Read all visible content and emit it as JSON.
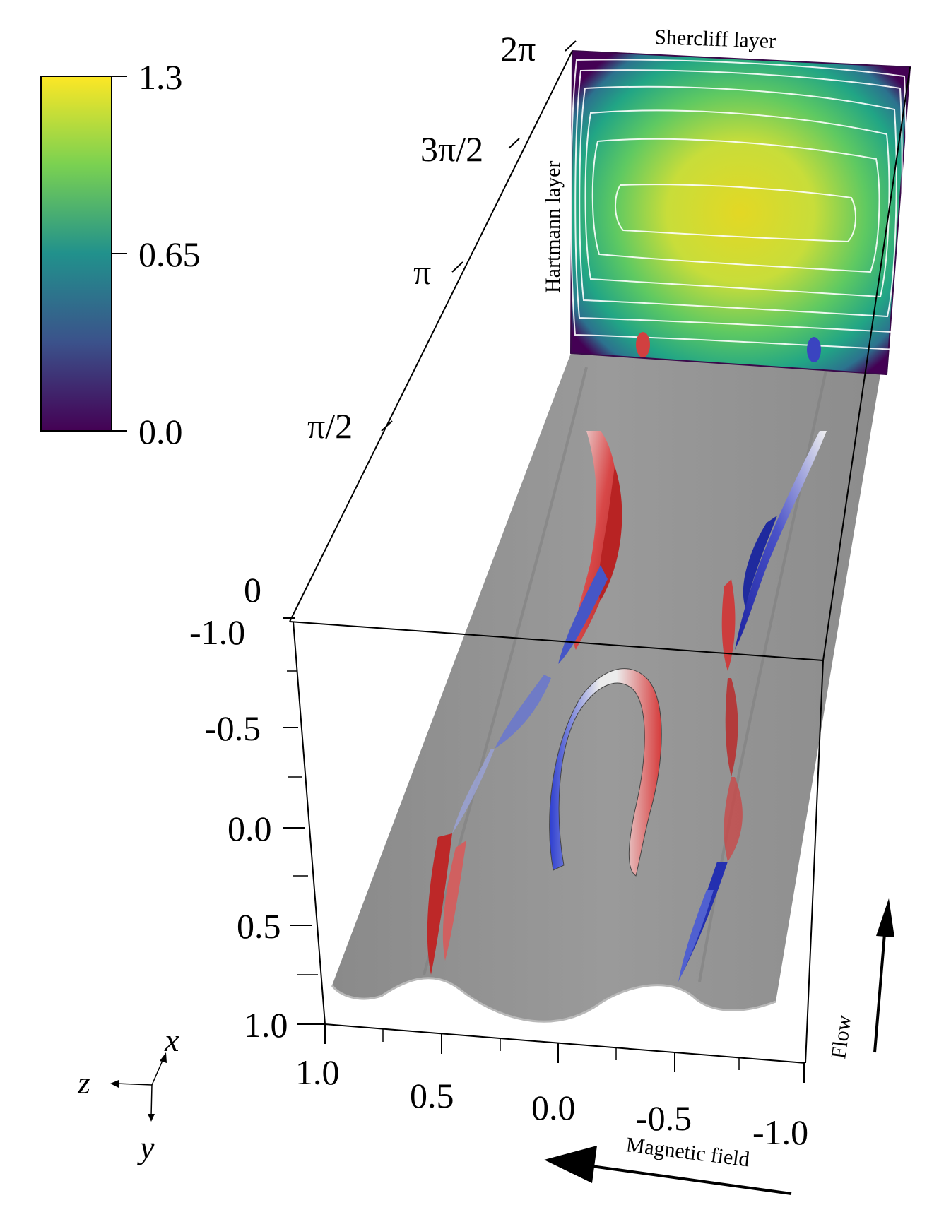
{
  "colorbar": {
    "max": "1.3",
    "mid": "0.65",
    "min": "0.0",
    "colors": [
      "#fde725",
      "#5ec962",
      "#21918c",
      "#3b528b",
      "#440154"
    ]
  },
  "y_axis_ticks": [
    "2π",
    "3π/2",
    "π",
    "π/2",
    "0"
  ],
  "x_axis_ticks": [
    "-1.0",
    "-0.5",
    "0.0",
    "0.5",
    "1.0"
  ],
  "z_axis_ticks": [
    "1.0",
    "0.5",
    "0.0",
    "-0.5",
    "-1.0"
  ],
  "annotations": {
    "shercliff": "Shercliff layer",
    "hartmann": "Hartmann layer",
    "flow": "Flow",
    "magnetic": "Magnetic field"
  },
  "triad": {
    "x": "x",
    "y": "y",
    "z": "z"
  }
}
